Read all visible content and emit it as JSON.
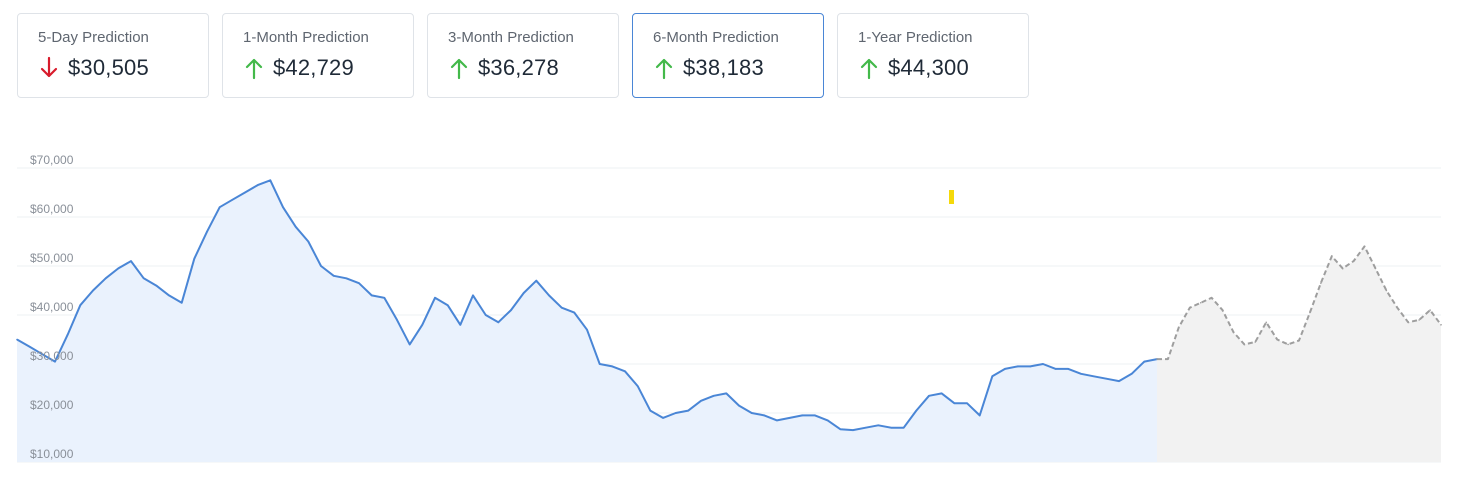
{
  "cards": [
    {
      "title": "5-Day Prediction",
      "value": "$30,505",
      "direction": "down",
      "active": false
    },
    {
      "title": "1-Month Prediction",
      "value": "$42,729",
      "direction": "up",
      "active": false
    },
    {
      "title": "3-Month Prediction",
      "value": "$36,278",
      "direction": "up",
      "active": false
    },
    {
      "title": "6-Month Prediction",
      "value": "$38,183",
      "direction": "up",
      "active": true
    },
    {
      "title": "1-Year Prediction",
      "value": "$44,300",
      "direction": "up",
      "active": false
    }
  ],
  "colors": {
    "up": "#43b94a",
    "down": "#d81b2c",
    "history_line": "#4a86d6",
    "history_fill": "#eaf2fd",
    "forecast_line": "#9e9e9e",
    "forecast_fill": "#f2f2f2",
    "marker": "#f5d90a"
  },
  "chart_data": {
    "type": "area",
    "y_ticks": [
      "$10,000",
      "$20,000",
      "$30,000",
      "$40,000",
      "$50,000",
      "$60,000",
      "$70,000"
    ],
    "ylim": [
      10000,
      70000
    ],
    "grid": true,
    "series": [
      {
        "kind": "history",
        "values": [
          35000,
          33500,
          32000,
          30500,
          36000,
          42000,
          45000,
          47500,
          49500,
          51000,
          47500,
          46000,
          44000,
          42500,
          51500,
          57000,
          62000,
          63500,
          65000,
          66500,
          67500,
          62000,
          58000,
          55000,
          50000,
          48000,
          47500,
          46500,
          44000,
          43500,
          39000,
          34000,
          38000,
          43500,
          42000,
          38000,
          44000,
          40000,
          38500,
          41000,
          44500,
          47000,
          44000,
          41500,
          40500,
          37000,
          30000,
          29500,
          28500,
          25500,
          20500,
          19000,
          20000,
          20500,
          22500,
          23500,
          24000,
          21500,
          20000,
          19500,
          18500,
          19000,
          19500,
          19500,
          18500,
          16700,
          16500,
          17000,
          17500,
          17000,
          17000,
          20500,
          23500,
          24000,
          22000,
          22000,
          19500,
          27500,
          29000,
          29500,
          29500,
          30000,
          29000,
          29000,
          28000,
          27500,
          27000,
          26500,
          28000,
          30500,
          31000
        ]
      },
      {
        "kind": "forecast",
        "values": [
          31000,
          31000,
          37500,
          41500,
          42500,
          43500,
          41000,
          36500,
          34000,
          34500,
          38500,
          35000,
          34000,
          34800,
          40500,
          46500,
          52000,
          49500,
          51000,
          54000,
          49500,
          45000,
          41500,
          38500,
          39000,
          41000,
          38000
        ]
      }
    ],
    "annotations": [
      {
        "type": "marker"
      }
    ]
  }
}
